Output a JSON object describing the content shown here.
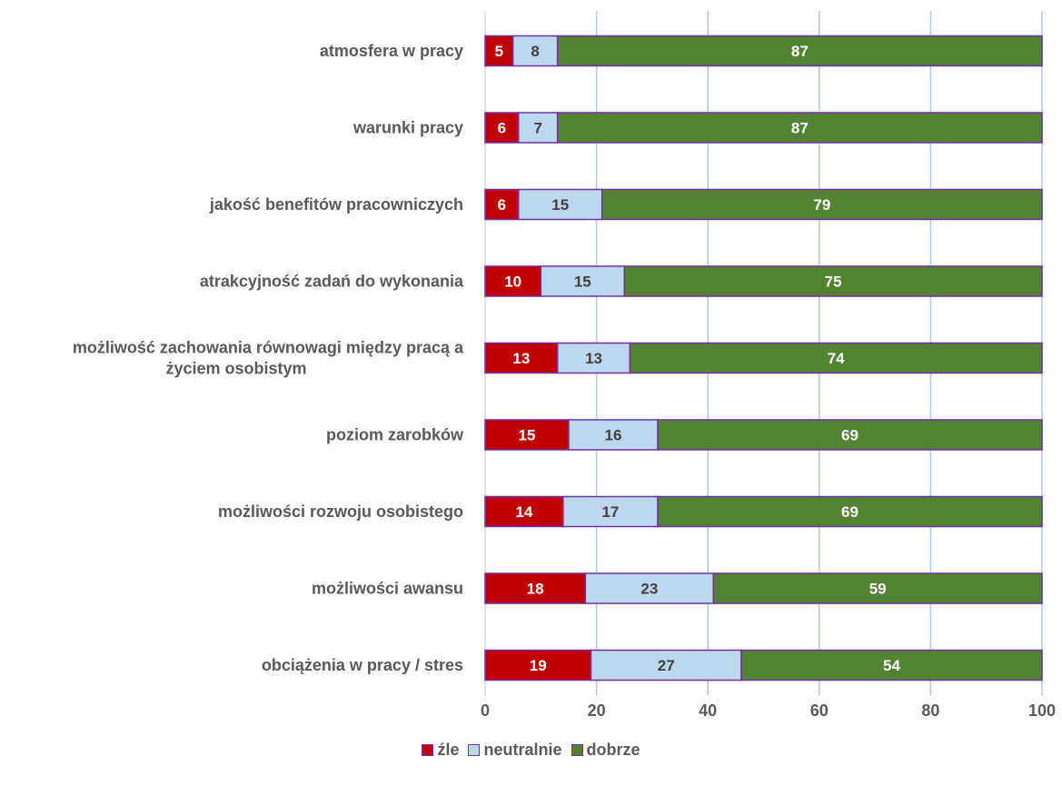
{
  "chart_data": {
    "type": "bar",
    "orientation": "horizontal",
    "stacked": true,
    "categories": [
      [
        "atmosfera w pracy"
      ],
      [
        "warunki pracy"
      ],
      [
        "jakość benefitów pracowniczych"
      ],
      [
        "atrakcyjność zadań do wykonania"
      ],
      [
        "możliwość zachowania równowagi między pracą a",
        "życiem osobistym"
      ],
      [
        "poziom zarobków"
      ],
      [
        "możliwości rozwoju osobistego"
      ],
      [
        "możliwości awansu"
      ],
      [
        "obciążenia w pracy / stres"
      ]
    ],
    "series": [
      {
        "name": "źle",
        "color": "#c00000",
        "label_color": "#ffffff",
        "values": [
          5,
          6,
          6,
          10,
          13,
          15,
          14,
          18,
          19
        ]
      },
      {
        "name": "neutralnie",
        "color": "#bdd7ee",
        "label_color": "#404040",
        "values": [
          8,
          7,
          15,
          15,
          13,
          16,
          17,
          23,
          27
        ]
      },
      {
        "name": "dobrze",
        "color": "#548235",
        "label_color": "#ffffff",
        "values": [
          87,
          87,
          79,
          75,
          74,
          69,
          69,
          59,
          54
        ]
      }
    ],
    "xlim": [
      0,
      100
    ],
    "xticks": [
      "0",
      "20",
      "40",
      "60",
      "80",
      "100"
    ],
    "grid": true,
    "bar_border_color": "#7030a0",
    "gridline_color": "#b4c7e7",
    "legend_position": "bottom",
    "title": "",
    "xlabel": "",
    "ylabel": ""
  }
}
